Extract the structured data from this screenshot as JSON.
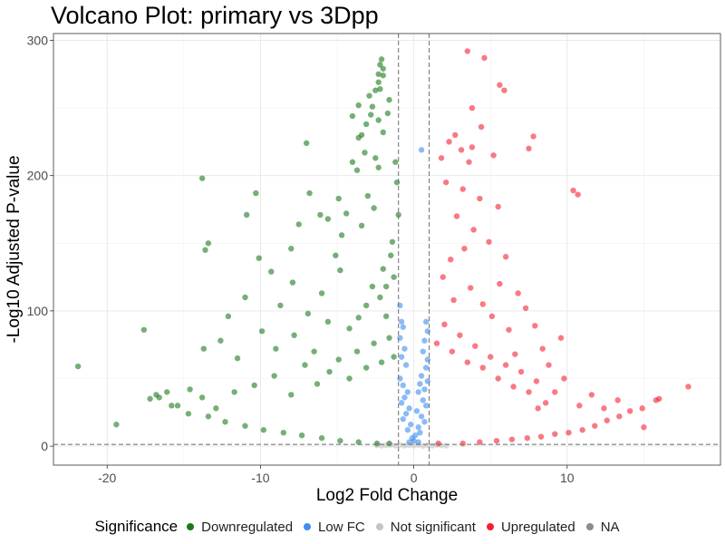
{
  "chart_data": {
    "type": "scatter",
    "title": "Volcano Plot: primary vs 3Dpp",
    "xlabel": "Log2 Fold Change",
    "ylabel": "-Log10 Adjusted P-value",
    "xlim": [
      -23.5,
      20
    ],
    "ylim": [
      -14,
      305
    ],
    "x_ticks": [
      -20,
      -10,
      0,
      10
    ],
    "y_ticks": [
      0,
      100,
      200,
      300
    ],
    "grid": true,
    "thresholds": {
      "log2fc": [
        -1,
        1
      ],
      "neg_log10_padj": 1.3
    },
    "legend": {
      "title": "Significance",
      "position": "bottom",
      "entries": [
        {
          "label": "Downregulated",
          "color": "#1a7a1a"
        },
        {
          "label": "Low FC",
          "color": "#3d8ef0"
        },
        {
          "label": "Not significant",
          "color": "#c4c4c4"
        },
        {
          "label": "Upregulated",
          "color": "#f5202e"
        },
        {
          "label": "NA",
          "color": "#8c8c8c"
        }
      ]
    },
    "series": [
      {
        "name": "Downregulated",
        "color": "#1a7a1a",
        "points": [
          [
            -21.9,
            59
          ],
          [
            -19.4,
            16
          ],
          [
            -17.6,
            86
          ],
          [
            -17.2,
            35
          ],
          [
            -16.6,
            36
          ],
          [
            -16.1,
            40
          ],
          [
            -13.7,
            72
          ],
          [
            -13.8,
            198
          ],
          [
            -13.6,
            145
          ],
          [
            -13.4,
            150
          ],
          [
            -10.3,
            187
          ],
          [
            -10.9,
            171
          ],
          [
            -10.1,
            139
          ],
          [
            -9.3,
            129
          ],
          [
            -7.9,
            121
          ],
          [
            -7.0,
            224
          ],
          [
            -6.9,
            98
          ],
          [
            -6.0,
            113
          ],
          [
            -4.9,
            183
          ],
          [
            -4.7,
            156
          ],
          [
            -4.4,
            172
          ],
          [
            -4.8,
            130
          ],
          [
            -4.0,
            210
          ],
          [
            -3.7,
            204
          ],
          [
            -3.6,
            228
          ],
          [
            -3.2,
            217
          ],
          [
            -3.6,
            252
          ],
          [
            -4.0,
            244
          ],
          [
            -2.5,
            213
          ],
          [
            -2.3,
            206
          ],
          [
            -2.6,
            176
          ],
          [
            -2.3,
            241
          ],
          [
            -2.8,
            245
          ],
          [
            -2.7,
            251
          ],
          [
            -2.9,
            259
          ],
          [
            -2.5,
            263
          ],
          [
            -2.2,
            264
          ],
          [
            -2.3,
            269
          ],
          [
            -2.0,
            274
          ],
          [
            -2.3,
            275
          ],
          [
            -2.0,
            279
          ],
          [
            -2.2,
            282
          ],
          [
            -2.1,
            286
          ],
          [
            -3.1,
            238
          ],
          [
            -3.4,
            230
          ],
          [
            -1.6,
            256
          ],
          [
            -1.7,
            246
          ],
          [
            -2.0,
            232
          ],
          [
            -1.2,
            210
          ],
          [
            -1.1,
            195
          ],
          [
            -1.0,
            171
          ],
          [
            -1.4,
            151
          ],
          [
            -1.8,
            118
          ],
          [
            -2.0,
            131
          ],
          [
            -1.5,
            141
          ],
          [
            -1.3,
            125
          ],
          [
            -6.1,
            171
          ],
          [
            -5.6,
            168
          ],
          [
            -5.1,
            141
          ],
          [
            -6.8,
            187
          ],
          [
            -7.5,
            164
          ],
          [
            -8.0,
            146
          ],
          [
            -3.0,
            185
          ],
          [
            -3.4,
            163
          ],
          [
            -11.0,
            110
          ],
          [
            -9.9,
            85
          ],
          [
            -8.7,
            104
          ],
          [
            -12.1,
            96
          ],
          [
            -12.6,
            78
          ],
          [
            -11.5,
            65
          ],
          [
            -9.0,
            72
          ],
          [
            -7.8,
            82
          ],
          [
            -6.5,
            70
          ],
          [
            -5.6,
            92
          ],
          [
            -4.2,
            87
          ],
          [
            -3.6,
            95
          ],
          [
            -3.1,
            104
          ],
          [
            -2.7,
            118
          ],
          [
            -2.2,
            110
          ],
          [
            -1.8,
            96
          ],
          [
            -15.8,
            30
          ],
          [
            -14.7,
            24
          ],
          [
            -13.4,
            22
          ],
          [
            -12.3,
            18
          ],
          [
            -11.0,
            15
          ],
          [
            -9.8,
            12
          ],
          [
            -8.5,
            10
          ],
          [
            -7.3,
            8
          ],
          [
            -6.0,
            6
          ],
          [
            -4.8,
            4
          ],
          [
            -3.6,
            3
          ],
          [
            -2.4,
            2
          ],
          [
            -1.6,
            2
          ],
          [
            -10.4,
            45
          ],
          [
            -9.1,
            52
          ],
          [
            -8.0,
            38
          ],
          [
            -7.1,
            60
          ],
          [
            -6.3,
            46
          ],
          [
            -5.5,
            55
          ],
          [
            -4.9,
            64
          ],
          [
            -4.2,
            50
          ],
          [
            -3.7,
            70
          ],
          [
            -3.1,
            58
          ],
          [
            -2.6,
            76
          ],
          [
            -2.1,
            62
          ],
          [
            -1.6,
            80
          ],
          [
            -1.3,
            66
          ],
          [
            -11.7,
            40
          ],
          [
            -12.9,
            28
          ],
          [
            -13.8,
            36
          ],
          [
            -14.6,
            42
          ],
          [
            -15.4,
            30
          ],
          [
            -16.8,
            38
          ]
        ]
      },
      {
        "name": "Upregulated",
        "color": "#f5202e",
        "points": [
          [
            3.5,
            292
          ],
          [
            4.6,
            287
          ],
          [
            5.6,
            267
          ],
          [
            5.9,
            263
          ],
          [
            3.8,
            250
          ],
          [
            4.4,
            236
          ],
          [
            2.7,
            230
          ],
          [
            2.3,
            225
          ],
          [
            3.1,
            219
          ],
          [
            3.8,
            221
          ],
          [
            5.2,
            215
          ],
          [
            1.8,
            213
          ],
          [
            3.6,
            210
          ],
          [
            7.5,
            220
          ],
          [
            7.8,
            229
          ],
          [
            10.4,
            189
          ],
          [
            10.7,
            186
          ],
          [
            2.1,
            195
          ],
          [
            3.2,
            190
          ],
          [
            4.3,
            183
          ],
          [
            5.5,
            177
          ],
          [
            2.8,
            170
          ],
          [
            3.9,
            160
          ],
          [
            4.9,
            151
          ],
          [
            6.0,
            140
          ],
          [
            3.3,
            146
          ],
          [
            2.4,
            138
          ],
          [
            1.9,
            125
          ],
          [
            5.6,
            120
          ],
          [
            6.8,
            113
          ],
          [
            7.3,
            102
          ],
          [
            7.9,
            89
          ],
          [
            9.6,
            80
          ],
          [
            8.4,
            72
          ],
          [
            6.6,
            68
          ],
          [
            6.2,
            86
          ],
          [
            5.1,
            96
          ],
          [
            4.5,
            105
          ],
          [
            3.7,
            117
          ],
          [
            2.6,
            108
          ],
          [
            17.9,
            44
          ],
          [
            16.0,
            35
          ],
          [
            15.8,
            34
          ],
          [
            14.9,
            28
          ],
          [
            15.0,
            14
          ],
          [
            13.4,
            22
          ],
          [
            12.6,
            19
          ],
          [
            11.8,
            15
          ],
          [
            11.0,
            12
          ],
          [
            10.1,
            10
          ],
          [
            9.2,
            9
          ],
          [
            8.3,
            7
          ],
          [
            7.4,
            6
          ],
          [
            6.4,
            5
          ],
          [
            5.4,
            4
          ],
          [
            4.3,
            3
          ],
          [
            3.2,
            2
          ],
          [
            1.6,
            2
          ],
          [
            9.2,
            40
          ],
          [
            8.6,
            32
          ],
          [
            8.0,
            48
          ],
          [
            7.5,
            40
          ],
          [
            7.0,
            55
          ],
          [
            6.5,
            44
          ],
          [
            6.0,
            60
          ],
          [
            5.5,
            50
          ],
          [
            5.0,
            66
          ],
          [
            4.5,
            58
          ],
          [
            4.0,
            74
          ],
          [
            3.5,
            62
          ],
          [
            3.0,
            82
          ],
          [
            2.5,
            70
          ],
          [
            2.0,
            90
          ],
          [
            1.5,
            76
          ],
          [
            10.8,
            30
          ],
          [
            11.6,
            38
          ],
          [
            12.4,
            28
          ],
          [
            13.3,
            34
          ],
          [
            14.1,
            26
          ],
          [
            9.8,
            50
          ],
          [
            8.8,
            60
          ],
          [
            8.1,
            28
          ]
        ]
      },
      {
        "name": "Low FC",
        "color": "#3d8ef0",
        "points": [
          [
            0.5,
            219
          ],
          [
            -0.9,
            104
          ],
          [
            -0.8,
            92
          ],
          [
            -0.7,
            88
          ],
          [
            -0.9,
            80
          ],
          [
            -0.6,
            72
          ],
          [
            -0.8,
            66
          ],
          [
            -0.5,
            60
          ],
          [
            0.8,
            92
          ],
          [
            0.9,
            85
          ],
          [
            0.7,
            78
          ],
          [
            0.6,
            70
          ],
          [
            0.9,
            64
          ],
          [
            0.8,
            58
          ],
          [
            0.5,
            52
          ],
          [
            0.4,
            46
          ],
          [
            -0.4,
            40
          ],
          [
            -0.6,
            36
          ],
          [
            -0.8,
            32
          ],
          [
            -0.3,
            28
          ],
          [
            -0.5,
            24
          ],
          [
            -0.7,
            20
          ],
          [
            -0.2,
            16
          ],
          [
            -0.4,
            12
          ],
          [
            0.3,
            40
          ],
          [
            0.6,
            34
          ],
          [
            0.8,
            30
          ],
          [
            0.2,
            26
          ],
          [
            0.5,
            22
          ],
          [
            0.7,
            18
          ],
          [
            0.3,
            14
          ],
          [
            0.4,
            10
          ],
          [
            -0.9,
            50
          ],
          [
            -0.7,
            45
          ],
          [
            0.9,
            48
          ],
          [
            0.7,
            42
          ],
          [
            -0.1,
            6
          ],
          [
            0.1,
            8
          ],
          [
            0.0,
            4
          ],
          [
            -0.3,
            3
          ],
          [
            0.3,
            3
          ]
        ]
      },
      {
        "name": "Not significant",
        "color": "#c4c4c4",
        "points": [
          [
            -1.8,
            0.6
          ],
          [
            -1.5,
            0.9
          ],
          [
            -1.2,
            0.4
          ],
          [
            -0.9,
            1.0
          ],
          [
            -0.6,
            0.3
          ],
          [
            -0.3,
            0.8
          ],
          [
            0.0,
            0.5
          ],
          [
            0.3,
            0.9
          ],
          [
            0.6,
            0.2
          ],
          [
            0.9,
            0.7
          ],
          [
            1.2,
            0.4
          ],
          [
            1.5,
            0.9
          ],
          [
            1.8,
            0.6
          ],
          [
            2.1,
            0.3
          ],
          [
            -2.1,
            0.3
          ],
          [
            -2.4,
            0.7
          ]
        ]
      }
    ]
  }
}
